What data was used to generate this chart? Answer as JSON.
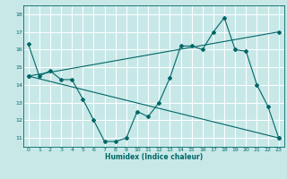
{
  "title": "",
  "xlabel": "Humidex (Indice chaleur)",
  "bg_color": "#c8e8e8",
  "line_color": "#006666",
  "grid_color": "#ffffff",
  "xlim": [
    -0.5,
    23.5
  ],
  "ylim": [
    10.5,
    18.5
  ],
  "xticks": [
    0,
    1,
    2,
    3,
    4,
    5,
    6,
    7,
    8,
    9,
    10,
    11,
    12,
    13,
    14,
    15,
    16,
    17,
    18,
    19,
    20,
    21,
    22,
    23
  ],
  "yticks": [
    11,
    12,
    13,
    14,
    15,
    16,
    17,
    18
  ],
  "line1_x": [
    0,
    1,
    2,
    3,
    4,
    5,
    6,
    7,
    8,
    9,
    10,
    11,
    12,
    13,
    14,
    15,
    16,
    17,
    18,
    19,
    20,
    21,
    22,
    23
  ],
  "line1_y": [
    16.3,
    14.5,
    14.8,
    14.3,
    14.3,
    13.2,
    12.0,
    10.8,
    10.8,
    11.0,
    12.5,
    12.2,
    13.0,
    14.4,
    16.2,
    16.2,
    16.0,
    17.0,
    17.8,
    16.0,
    15.9,
    14.0,
    12.8,
    11.0
  ],
  "line2_x": [
    0,
    23
  ],
  "line2_y": [
    14.5,
    17.0
  ],
  "line3_x": [
    0,
    23
  ],
  "line3_y": [
    14.5,
    11.0
  ]
}
